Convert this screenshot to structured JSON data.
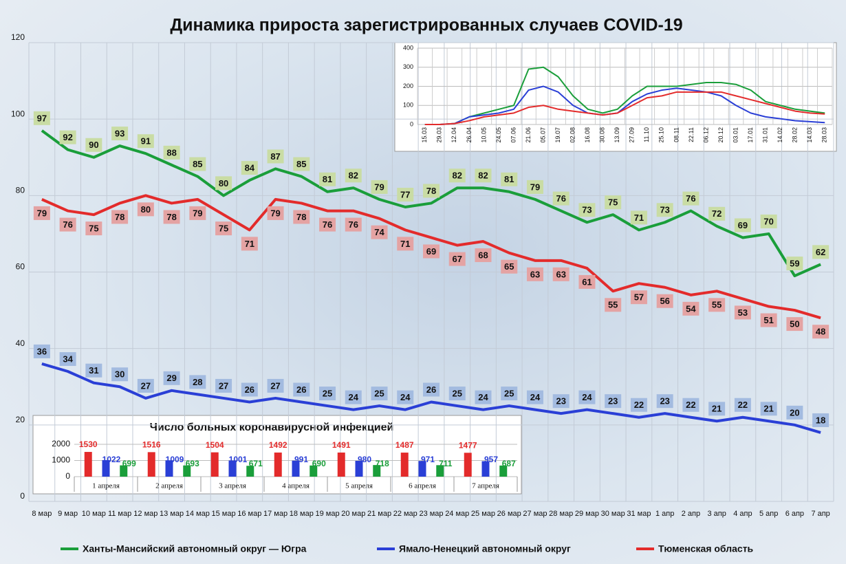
{
  "chart_data": [
    {
      "type": "line",
      "title": "Динамика прироста зарегистрированных случаев COVID-19",
      "categories": [
        "8 мар",
        "9 мар",
        "10 мар",
        "11 мар",
        "12 мар",
        "13 мар",
        "14 мар",
        "15 мар",
        "16 мар",
        "17 мар",
        "18 мар",
        "19 мар",
        "20 мар",
        "21 мар",
        "22 мар",
        "23 мар",
        "24 мар",
        "25 мар",
        "26 мар",
        "27 мар",
        "28 мар",
        "29 мар",
        "30 мар",
        "31 мар",
        "1 апр",
        "2 апр",
        "3 апр",
        "4 апр",
        "5 апр",
        "6 апр",
        "7 апр"
      ],
      "series": [
        {
          "name": "Ханты-Мансийский автономный округ — Югра",
          "color": "#1a9e3a",
          "label_color": "#c9dca4",
          "values": [
            97,
            92,
            90,
            93,
            91,
            88,
            85,
            80,
            84,
            87,
            85,
            81,
            82,
            79,
            77,
            78,
            82,
            82,
            81,
            79,
            76,
            73,
            75,
            71,
            73,
            76,
            72,
            69,
            70,
            59,
            62
          ]
        },
        {
          "name": "Ямало-Ненецкий автономный округ",
          "color": "#2a3fd6",
          "label_color": "#a3bbe0",
          "values": [
            36,
            34,
            31,
            30,
            27,
            29,
            28,
            27,
            26,
            27,
            26,
            25,
            24,
            25,
            24,
            26,
            25,
            24,
            25,
            24,
            23,
            24,
            23,
            22,
            23,
            22,
            21,
            22,
            21,
            20,
            18
          ]
        },
        {
          "name": "Тюменская область",
          "color": "#e32b2b",
          "label_color": "#e4a3a3",
          "values": [
            79,
            76,
            75,
            78,
            80,
            78,
            79,
            75,
            71,
            79,
            78,
            76,
            76,
            74,
            71,
            69,
            67,
            68,
            65,
            63,
            63,
            61,
            55,
            57,
            56,
            54,
            55,
            53,
            51,
            50,
            48
          ]
        }
      ],
      "ylim": [
        0,
        120
      ],
      "yticks": [
        0,
        20,
        40,
        60,
        80,
        100,
        120
      ],
      "grid": true,
      "data_labels": true,
      "legend": "bottom"
    },
    {
      "type": "line",
      "categories": [
        "15.03",
        "29.03",
        "12.04",
        "26.04",
        "10.05",
        "24.05",
        "07.06",
        "21.06",
        "05.07",
        "19.07",
        "02.08",
        "16.08",
        "30.08",
        "13.09",
        "27.09",
        "11.10",
        "25.10",
        "08.11",
        "22.11",
        "06.12",
        "20.12",
        "03.01",
        "17.01",
        "31.01",
        "14.02",
        "28.02",
        "14.03",
        "28.03"
      ],
      "series": [
        {
          "color": "#1a9e3a",
          "values": [
            0,
            0,
            5,
            40,
            60,
            80,
            100,
            290,
            300,
            250,
            150,
            80,
            60,
            80,
            150,
            200,
            200,
            200,
            210,
            220,
            220,
            210,
            180,
            120,
            100,
            80,
            70,
            60
          ]
        },
        {
          "color": "#2a3fd6",
          "values": [
            0,
            0,
            5,
            40,
            50,
            60,
            80,
            180,
            200,
            170,
            100,
            60,
            50,
            60,
            120,
            160,
            180,
            190,
            180,
            170,
            150,
            100,
            60,
            40,
            30,
            20,
            15,
            10
          ]
        },
        {
          "color": "#e32b2b",
          "values": [
            0,
            0,
            5,
            20,
            40,
            50,
            60,
            90,
            100,
            80,
            70,
            60,
            50,
            60,
            100,
            140,
            150,
            170,
            170,
            170,
            170,
            150,
            130,
            110,
            90,
            70,
            60,
            55
          ]
        }
      ],
      "ylim": [
        0,
        400
      ],
      "yticks": [
        0,
        100,
        200,
        300,
        400
      ],
      "grid": true
    },
    {
      "type": "bar",
      "title": "Число больных коронавирусной инфекцией",
      "categories": [
        "1 апреля",
        "2 апреля",
        "3 апреля",
        "4 апреля",
        "5 апреля",
        "6 апреля",
        "7 апреля"
      ],
      "series": [
        {
          "color": "#e32b2b",
          "values": [
            1530,
            1516,
            1504,
            1492,
            1491,
            1487,
            1477
          ]
        },
        {
          "color": "#2a3fd6",
          "values": [
            1022,
            1009,
            1001,
            991,
            980,
            971,
            957
          ]
        },
        {
          "color": "#1a9e3a",
          "values": [
            699,
            693,
            671,
            690,
            718,
            711,
            687
          ]
        }
      ],
      "ylim": [
        0,
        2000
      ],
      "yticks": [
        0,
        1000,
        2000
      ],
      "grid": true,
      "data_labels": true
    }
  ]
}
